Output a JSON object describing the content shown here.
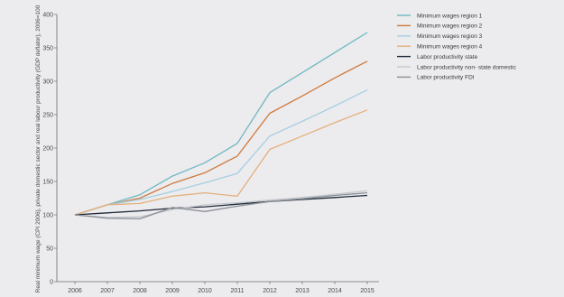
{
  "chart_data": {
    "type": "line",
    "title": "",
    "xlabel": "",
    "ylabel": "Real minimum wage (CPI 2006), private domestic sector and real labour productivity (GDP deflator), 2006=100",
    "x": [
      "2006",
      "2007",
      "2008",
      "2009",
      "2010",
      "2011",
      "2012",
      "2013",
      "2014",
      "2015"
    ],
    "ylim": [
      0,
      400
    ],
    "yticks": [
      0,
      50,
      100,
      150,
      200,
      250,
      300,
      350,
      400
    ],
    "grid": false,
    "legend_position": "top-right",
    "series": [
      {
        "name": "Minimum wages region 1",
        "color": "#6fb8c2",
        "values": [
          100,
          115,
          130,
          158,
          178,
          207,
          283,
          313,
          343,
          373
        ]
      },
      {
        "name": "Minimum wages region 2",
        "color": "#d07a3c",
        "values": [
          100,
          115,
          125,
          147,
          163,
          188,
          252,
          278,
          305,
          330
        ]
      },
      {
        "name": "Minimum wages region 3",
        "color": "#a5cfe0",
        "values": [
          100,
          115,
          123,
          135,
          148,
          162,
          218,
          240,
          263,
          287
        ]
      },
      {
        "name": "Minimum wages region 4",
        "color": "#e3b07c",
        "values": [
          100,
          115,
          117,
          128,
          133,
          128,
          198,
          218,
          238,
          257
        ]
      },
      {
        "name": "Labor productivity state",
        "color": "#1f2a3a",
        "values": [
          100,
          103,
          106,
          110,
          112,
          116,
          120,
          123,
          126,
          129
        ]
      },
      {
        "name": "Labor productivity non- state domestic",
        "color": "#c5c9ce",
        "values": [
          100,
          96,
          97,
          108,
          115,
          118,
          122,
          126,
          131,
          136
        ]
      },
      {
        "name": "Labor productivity FDI",
        "color": "#8a9096",
        "values": [
          100,
          95,
          94,
          111,
          105,
          113,
          120,
          124,
          129,
          133
        ]
      }
    ]
  }
}
